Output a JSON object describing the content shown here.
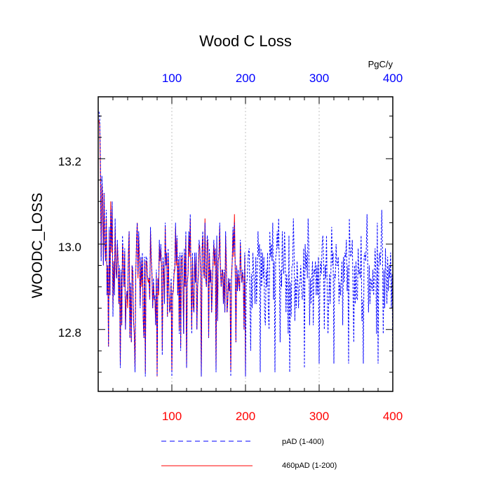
{
  "chart_data": {
    "type": "line",
    "title": "Wood C Loss",
    "ylabel": "WOODC_LOSS",
    "xlabel": "",
    "top_axis_unit": "PgC/y",
    "xlim": [
      0,
      400
    ],
    "ylim": [
      12.655,
      13.345
    ],
    "x_ticks_bottom": [
      "100",
      "200",
      "300",
      "400"
    ],
    "x_ticks_top": [
      "100",
      "200",
      "300",
      "400"
    ],
    "bottom_tick_color": "#ff0000",
    "top_tick_color": "#0000ff",
    "y_ticks": [
      "12.8",
      "13.0",
      "13.2"
    ],
    "grid": "vertical dashed at 100, 200, 300",
    "legend_position": "bottom-center",
    "series": [
      {
        "name": "pAD (1-400)",
        "color": "#0000ff",
        "style": "dashed",
        "x": [
          1,
          2,
          3,
          4,
          5,
          6,
          7,
          8,
          9,
          10,
          11,
          12,
          13,
          14,
          15,
          16,
          17,
          18,
          19,
          20,
          21,
          22,
          23,
          24,
          25,
          26,
          27,
          28,
          29,
          30,
          31,
          32,
          33,
          34,
          35,
          36,
          37,
          38,
          39,
          40,
          41,
          42,
          43,
          44,
          45,
          46,
          47,
          48,
          49,
          50,
          51,
          52,
          53,
          54,
          55,
          56,
          57,
          58,
          59,
          60,
          61,
          62,
          63,
          64,
          65,
          66,
          67,
          68,
          69,
          70,
          71,
          72,
          73,
          74,
          75,
          76,
          77,
          78,
          79,
          80,
          81,
          82,
          83,
          84,
          85,
          86,
          87,
          88,
          89,
          90,
          91,
          92,
          93,
          94,
          95,
          96,
          97,
          98,
          99,
          100,
          101,
          102,
          103,
          104,
          105,
          106,
          107,
          108,
          109,
          110,
          111,
          112,
          113,
          114,
          115,
          116,
          117,
          118,
          119,
          120,
          121,
          122,
          123,
          124,
          125,
          126,
          127,
          128,
          129,
          130,
          131,
          132,
          133,
          134,
          135,
          136,
          137,
          138,
          139,
          140,
          141,
          142,
          143,
          144,
          145,
          146,
          147,
          148,
          149,
          150,
          151,
          152,
          153,
          154,
          155,
          156,
          157,
          158,
          159,
          160,
          161,
          162,
          163,
          164,
          165,
          166,
          167,
          168,
          169,
          170,
          171,
          172,
          173,
          174,
          175,
          176,
          177,
          178,
          179,
          180,
          181,
          182,
          183,
          184,
          185,
          186,
          187,
          188,
          189,
          190,
          191,
          192,
          193,
          194,
          195,
          196,
          197,
          198,
          199,
          200,
          201,
          202,
          203,
          204,
          205,
          206,
          207,
          208,
          209,
          210,
          211,
          212,
          213,
          214,
          215,
          216,
          217,
          218,
          219,
          220,
          221,
          222,
          223,
          224,
          225,
          226,
          227,
          228,
          229,
          230,
          231,
          232,
          233,
          234,
          235,
          236,
          237,
          238,
          239,
          240,
          241,
          242,
          243,
          244,
          245,
          246,
          247,
          248,
          249,
          250,
          251,
          252,
          253,
          254,
          255,
          256,
          257,
          258,
          259,
          260,
          261,
          262,
          263,
          264,
          265,
          266,
          267,
          268,
          269,
          270,
          271,
          272,
          273,
          274,
          275,
          276,
          277,
          278,
          279,
          280,
          281,
          282,
          283,
          284,
          285,
          286,
          287,
          288,
          289,
          290,
          291,
          292,
          293,
          294,
          295,
          296,
          297,
          298,
          299,
          300,
          301,
          302,
          303,
          304,
          305,
          306,
          307,
          308,
          309,
          310,
          311,
          312,
          313,
          314,
          315,
          316,
          317,
          318,
          319,
          320,
          321,
          322,
          323,
          324,
          325,
          326,
          327,
          328,
          329,
          330,
          331,
          332,
          333,
          334,
          335,
          336,
          337,
          338,
          339,
          340,
          341,
          342,
          343,
          344,
          345,
          346,
          347,
          348,
          349,
          350,
          351,
          352,
          353,
          354,
          355,
          356,
          357,
          358,
          359,
          360,
          361,
          362,
          363,
          364,
          365,
          366,
          367,
          368,
          369,
          370,
          371,
          372,
          373,
          374,
          375,
          376,
          377,
          378,
          379,
          380,
          381,
          382,
          383,
          384,
          385,
          386,
          387,
          388,
          389,
          390,
          391,
          392,
          393,
          394,
          395,
          396,
          397,
          398,
          399,
          400
        ],
        "y": [
          13.31,
          13.3,
          13.2,
          12.96,
          13.16,
          13.12,
          12.95,
          13.12,
          13.01,
          12.96,
          13.08,
          12.88,
          12.95,
          12.76,
          13.04,
          12.88,
          13.08,
          12.99,
          13.1,
          12.83,
          12.96,
          12.88,
          13.06,
          12.94,
          12.92,
          13.01,
          12.96,
          12.86,
          12.95,
          12.71,
          12.94,
          12.81,
          13.02,
          12.97,
          12.9,
          12.99,
          12.8,
          12.87,
          12.89,
          12.87,
          12.98,
          13.03,
          12.78,
          12.91,
          12.77,
          12.95,
          12.94,
          12.82,
          12.79,
          12.7,
          12.93,
          13.01,
          13.05,
          12.93,
          13.03,
          12.97,
          12.85,
          12.97,
          12.91,
          12.98,
          12.83,
          12.78,
          12.97,
          12.69,
          12.97,
          12.97,
          12.92,
          12.92,
          12.92,
          12.87,
          13.04,
          12.97,
          12.93,
          12.85,
          12.92,
          12.87,
          12.88,
          12.81,
          12.94,
          12.69,
          12.92,
          12.89,
          13.01,
          12.96,
          13.0,
          12.95,
          12.74,
          12.97,
          12.94,
          12.86,
          13.05,
          12.95,
          12.98,
          12.83,
          12.99,
          12.9,
          12.84,
          12.85,
          12.92,
          12.69,
          12.89,
          12.89,
          12.94,
          12.94,
          13.05,
          12.96,
          13.02,
          12.88,
          12.97,
          12.79,
          12.98,
          12.75,
          12.97,
          12.98,
          12.91,
          12.79,
          12.99,
          12.9,
          13.03,
          12.71,
          12.91,
          12.93,
          13.03,
          12.98,
          13.07,
          12.92,
          12.79,
          12.98,
          12.86,
          12.84,
          12.98,
          12.91,
          12.98,
          12.8,
          12.9,
          12.93,
          13.01,
          12.99,
          12.94,
          12.69,
          12.99,
          13.03,
          12.94,
          12.92,
          13.05,
          12.92,
          12.9,
          13.02,
          13.01,
          12.78,
          12.99,
          12.91,
          12.94,
          12.84,
          12.9,
          12.96,
          13.01,
          12.96,
          12.99,
          12.7,
          13.02,
          12.82,
          12.96,
          12.98,
          13.05,
          12.94,
          12.9,
          12.94,
          12.94,
          12.86,
          12.94,
          12.84,
          13.03,
          12.95,
          12.84,
          12.87,
          12.92,
          12.89,
          12.92,
          12.69,
          12.92,
          12.96,
          13.04,
          12.98,
          13.05,
          12.95,
          12.77,
          12.95,
          12.89,
          12.94,
          12.91,
          12.89,
          13.01,
          12.94,
          12.91,
          12.94,
          12.92,
          12.8,
          12.98,
          12.69,
          12.91,
          12.91,
          12.95,
          12.98,
          12.99,
          12.88,
          12.75,
          12.93,
          12.85,
          12.98,
          12.94,
          12.91,
          12.86,
          12.97,
          12.86,
          12.93,
          13.03,
          12.97,
          13.0,
          12.7,
          12.99,
          12.9,
          12.98,
          12.92,
          12.97,
          12.83,
          12.81,
          12.94,
          12.9,
          12.98,
          12.84,
          12.8,
          13.03,
          12.97,
          13.0,
          12.96,
          13.05,
          12.87,
          12.96,
          12.7,
          12.97,
          12.98,
          13.03,
          12.99,
          13.06,
          12.94,
          12.77,
          12.94,
          12.9,
          13.03,
          12.94,
          12.93,
          13.03,
          12.97,
          12.84,
          12.93,
          12.89,
          12.79,
          13.02,
          12.7,
          12.91,
          12.83,
          12.95,
          12.95,
          13.06,
          12.98,
          12.82,
          12.92,
          12.85,
          12.96,
          12.92,
          12.85,
          12.9,
          12.91,
          12.95,
          12.9,
          12.87,
          12.88,
          12.99,
          12.71,
          13.0,
          12.94,
          12.98,
          12.92,
          13.06,
          12.99,
          12.81,
          12.92,
          12.86,
          12.92,
          12.96,
          12.81,
          12.94,
          12.93,
          12.96,
          12.88,
          12.95,
          12.88,
          12.97,
          12.72,
          12.91,
          12.96,
          12.93,
          13.0,
          13.02,
          12.96,
          12.8,
          12.95,
          12.92,
          13.02,
          12.88,
          12.79,
          12.87,
          12.93,
          12.86,
          12.94,
          13.04,
          12.95,
          12.98,
          12.72,
          12.93,
          12.92,
          13.0,
          12.95,
          12.95,
          12.97,
          12.86,
          12.91,
          12.88,
          12.92,
          12.96,
          12.81,
          12.97,
          12.91,
          12.98,
          12.97,
          13.01,
          12.89,
          12.95,
          12.72,
          13.06,
          12.99,
          12.97,
          12.98,
          13.01,
          12.89,
          12.77,
          12.95,
          12.86,
          12.96,
          12.87,
          12.87,
          12.99,
          12.93,
          12.94,
          12.92,
          13.02,
          12.82,
          12.87,
          12.72,
          12.97,
          12.98,
          12.96,
          12.99,
          13.07,
          12.94,
          12.84,
          12.95,
          12.86,
          12.92,
          12.91,
          12.89,
          12.94,
          12.88,
          12.93,
          12.99,
          12.93,
          12.79,
          13.05,
          12.72,
          12.96,
          12.98,
          12.95,
          12.99,
          13.08,
          12.99,
          12.79,
          12.94,
          12.85,
          12.99,
          12.92,
          12.86,
          12.97,
          12.89,
          12.95,
          12.92,
          12.98,
          12.85,
          12.93,
          12.72
        ]
      },
      {
        "name": "460pAD (1-200)",
        "color": "#ff0000",
        "style": "solid",
        "x": [
          1,
          2,
          3,
          4,
          5,
          6,
          7,
          8,
          9,
          10,
          11,
          12,
          13,
          14,
          15,
          16,
          17,
          18,
          19,
          20,
          21,
          22,
          23,
          24,
          25,
          26,
          27,
          28,
          29,
          30,
          31,
          32,
          33,
          34,
          35,
          36,
          37,
          38,
          39,
          40,
          41,
          42,
          43,
          44,
          45,
          46,
          47,
          48,
          49,
          50,
          51,
          52,
          53,
          54,
          55,
          56,
          57,
          58,
          59,
          60,
          61,
          62,
          63,
          64,
          65,
          66,
          67,
          68,
          69,
          70,
          71,
          72,
          73,
          74,
          75,
          76,
          77,
          78,
          79,
          80,
          81,
          82,
          83,
          84,
          85,
          86,
          87,
          88,
          89,
          90,
          91,
          92,
          93,
          94,
          95,
          96,
          97,
          98,
          99,
          100,
          101,
          102,
          103,
          104,
          105,
          106,
          107,
          108,
          109,
          110,
          111,
          112,
          113,
          114,
          115,
          116,
          117,
          118,
          119,
          120,
          121,
          122,
          123,
          124,
          125,
          126,
          127,
          128,
          129,
          130,
          131,
          132,
          133,
          134,
          135,
          136,
          137,
          138,
          139,
          140,
          141,
          142,
          143,
          144,
          145,
          146,
          147,
          148,
          149,
          150,
          151,
          152,
          153,
          154,
          155,
          156,
          157,
          158,
          159,
          160,
          161,
          162,
          163,
          164,
          165,
          166,
          167,
          168,
          169,
          170,
          171,
          172,
          173,
          174,
          175,
          176,
          177,
          178,
          179,
          180,
          181,
          182,
          183,
          184,
          185,
          186,
          187,
          188,
          189,
          190,
          191,
          192,
          193,
          194,
          195,
          196,
          197,
          198,
          199,
          200
        ],
        "y": [
          13.29,
          13.28,
          13.18,
          12.97,
          13.14,
          13.1,
          12.95,
          13.12,
          13.0,
          12.96,
          13.06,
          12.88,
          12.95,
          12.76,
          13.03,
          12.88,
          13.1,
          12.98,
          13.09,
          12.85,
          12.96,
          12.88,
          13.04,
          12.94,
          12.92,
          13.0,
          12.96,
          12.86,
          12.94,
          12.72,
          12.93,
          12.81,
          13.0,
          12.96,
          12.9,
          12.98,
          12.8,
          12.87,
          12.89,
          12.85,
          12.97,
          13.03,
          12.78,
          12.9,
          12.77,
          12.95,
          12.93,
          12.82,
          12.79,
          12.71,
          12.93,
          13.0,
          13.05,
          12.92,
          13.02,
          12.96,
          12.86,
          12.96,
          12.9,
          12.97,
          12.83,
          12.78,
          12.96,
          12.7,
          12.96,
          12.96,
          12.92,
          12.91,
          12.92,
          12.87,
          13.03,
          12.96,
          12.93,
          12.85,
          12.91,
          12.87,
          12.87,
          12.81,
          12.93,
          12.69,
          12.92,
          12.88,
          13.0,
          12.96,
          12.99,
          12.95,
          12.75,
          12.96,
          12.93,
          12.86,
          13.04,
          12.95,
          12.97,
          12.83,
          12.98,
          12.9,
          12.84,
          12.85,
          12.91,
          12.7,
          12.88,
          12.89,
          12.93,
          12.94,
          13.04,
          12.95,
          13.01,
          12.88,
          12.96,
          12.8,
          12.97,
          12.76,
          12.96,
          12.97,
          12.91,
          12.79,
          12.98,
          12.9,
          13.02,
          12.71,
          12.91,
          12.93,
          13.02,
          12.97,
          13.06,
          12.92,
          12.8,
          12.97,
          12.86,
          12.84,
          12.97,
          12.91,
          12.97,
          12.8,
          12.9,
          12.93,
          13.0,
          12.99,
          12.93,
          12.69,
          12.98,
          13.02,
          12.94,
          12.92,
          13.06,
          12.92,
          12.9,
          13.01,
          13.0,
          12.78,
          12.98,
          12.91,
          12.94,
          12.84,
          12.9,
          12.96,
          13.0,
          12.95,
          12.99,
          12.71,
          13.01,
          12.82,
          12.96,
          12.97,
          13.04,
          12.94,
          12.9,
          12.93,
          12.94,
          12.86,
          12.93,
          12.84,
          13.02,
          12.95,
          12.84,
          12.87,
          12.92,
          12.89,
          12.91,
          12.7,
          12.92,
          12.96,
          13.03,
          12.97,
          13.07,
          12.95,
          12.77,
          12.95,
          12.89,
          12.93,
          12.91,
          12.89,
          13.0,
          12.94,
          12.91,
          12.93,
          12.92,
          12.8,
          12.97,
          12.69
        ]
      }
    ]
  }
}
